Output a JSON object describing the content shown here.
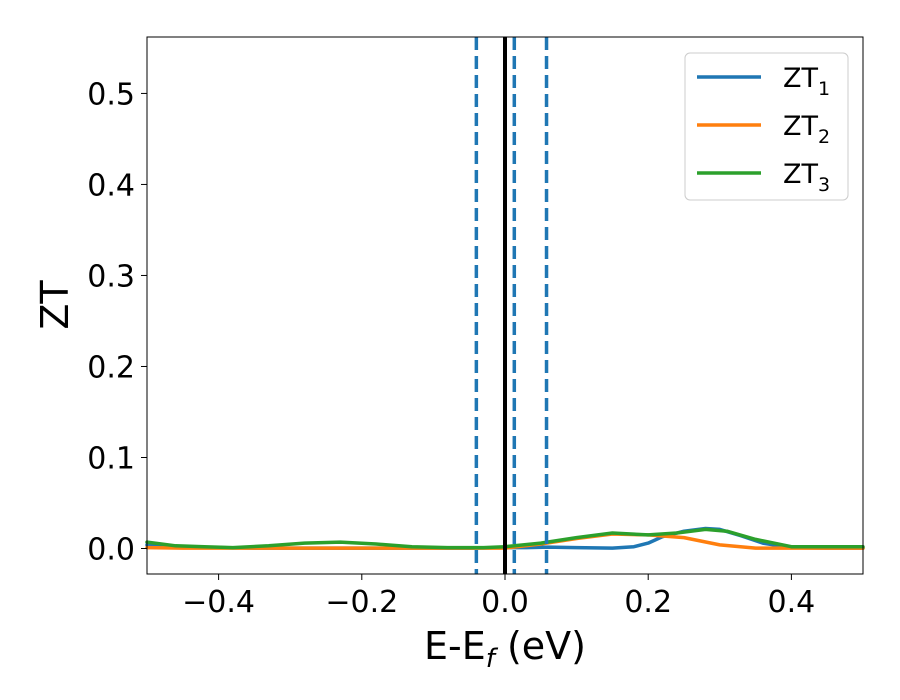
{
  "chart_data": {
    "type": "line",
    "title": "",
    "xlabel": {
      "main": "E-E",
      "sub": "f",
      "tail": " (eV)"
    },
    "ylabel": "ZT",
    "xlim": [
      -0.5,
      0.5
    ],
    "ylim": [
      -0.028,
      0.562
    ],
    "xticks": [
      -0.4,
      -0.2,
      0.0,
      0.2,
      0.4
    ],
    "xtick_labels": [
      "−0.4",
      "−0.2",
      "0.0",
      "0.2",
      "0.4"
    ],
    "yticks": [
      0.0,
      0.1,
      0.2,
      0.3,
      0.4,
      0.5
    ],
    "ytick_labels": [
      "0.0",
      "0.1",
      "0.2",
      "0.3",
      "0.4",
      "0.5"
    ],
    "grid": false,
    "legend": "top-right",
    "vlines": [
      {
        "x": -0.04,
        "style": "dashed",
        "color": "#1f77b4"
      },
      {
        "x": 0.013,
        "style": "dashed",
        "color": "#1f77b4"
      },
      {
        "x": 0.058,
        "style": "dashed",
        "color": "#1f77b4"
      },
      {
        "x": 0.0,
        "style": "solid",
        "color": "#000000"
      }
    ],
    "series": [
      {
        "name": "ZT",
        "sub": "1",
        "color": "#1f77b4",
        "x": [
          -0.5,
          -0.45,
          -0.4,
          -0.35,
          -0.3,
          -0.25,
          -0.2,
          -0.15,
          -0.1,
          -0.05,
          0.0,
          0.03,
          0.06,
          0.1,
          0.15,
          0.18,
          0.2,
          0.22,
          0.25,
          0.28,
          0.3,
          0.33,
          0.36,
          0.4,
          0.45,
          0.5
        ],
        "y": [
          0.004,
          0.002,
          0.001,
          0.0005,
          0.0005,
          0.0005,
          0.0005,
          0.0005,
          0.0005,
          0.0005,
          0.001,
          0.001,
          0.0015,
          0.001,
          0.0005,
          0.002,
          0.006,
          0.013,
          0.019,
          0.022,
          0.021,
          0.014,
          0.006,
          0.001,
          0.0005,
          0.0005
        ]
      },
      {
        "name": "ZT",
        "sub": "2",
        "color": "#ff7f0e",
        "x": [
          -0.5,
          -0.45,
          -0.4,
          -0.35,
          -0.3,
          -0.25,
          -0.2,
          -0.15,
          -0.1,
          -0.05,
          0.0,
          0.05,
          0.1,
          0.15,
          0.2,
          0.25,
          0.3,
          0.35,
          0.4,
          0.45,
          0.5
        ],
        "y": [
          0.001,
          0.0005,
          0.0005,
          0.0005,
          0.0005,
          0.0005,
          0.0005,
          0.0005,
          0.0005,
          0.0005,
          0.0005,
          0.005,
          0.011,
          0.016,
          0.015,
          0.012,
          0.004,
          0.0005,
          0.0005,
          0.0005,
          0.0005
        ]
      },
      {
        "name": "ZT",
        "sub": "3",
        "color": "#2ca02c",
        "x": [
          -0.5,
          -0.46,
          -0.42,
          -0.38,
          -0.33,
          -0.28,
          -0.23,
          -0.18,
          -0.13,
          -0.08,
          -0.03,
          0.0,
          0.05,
          0.1,
          0.15,
          0.2,
          0.24,
          0.28,
          0.31,
          0.35,
          0.4,
          0.45,
          0.5
        ],
        "y": [
          0.007,
          0.003,
          0.002,
          0.001,
          0.003,
          0.006,
          0.007,
          0.005,
          0.002,
          0.001,
          0.001,
          0.002,
          0.006,
          0.012,
          0.017,
          0.015,
          0.017,
          0.021,
          0.019,
          0.01,
          0.002,
          0.002,
          0.002
        ]
      }
    ]
  }
}
